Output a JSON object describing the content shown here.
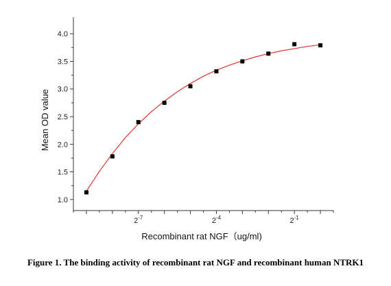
{
  "chart_data": {
    "type": "scatter",
    "title": "",
    "xlabel": "Recombinant rat NGF（ug/ml)",
    "ylabel": "Mean OD value",
    "x_scale": "log2",
    "xlim_exp2": [
      -9.5,
      0.5
    ],
    "ylim": [
      0.8,
      4.3
    ],
    "y_ticks": [
      "1.0",
      "1.5",
      "2.0",
      "2.5",
      "3.0",
      "3.5",
      "4.0"
    ],
    "x_ticks_labeled": [
      {
        "base": "2",
        "exp": "-7"
      },
      {
        "base": "2",
        "exp": "-4"
      },
      {
        "base": "2",
        "exp": "-1"
      }
    ],
    "series": [
      {
        "marker": "square",
        "color": "#000000",
        "x_exp2": [
          -9,
          -8,
          -7,
          -6,
          -5,
          -4,
          -3,
          -2,
          -1,
          0
        ],
        "y": [
          1.13,
          1.78,
          2.4,
          2.75,
          3.05,
          3.32,
          3.5,
          3.64,
          3.81,
          3.79
        ]
      }
    ],
    "fit_curve": {
      "color": "#e03030",
      "x_exp2": [
        -9,
        -8.5,
        -8,
        -7.5,
        -7,
        -6.5,
        -6,
        -5.5,
        -5,
        -4.5,
        -4,
        -3.5,
        -3,
        -2.5,
        -2,
        -1.5,
        -1,
        -0.5,
        0
      ],
      "y": [
        1.15,
        1.51,
        1.83,
        2.12,
        2.37,
        2.59,
        2.78,
        2.95,
        3.1,
        3.23,
        3.34,
        3.43,
        3.51,
        3.58,
        3.64,
        3.69,
        3.73,
        3.77,
        3.8
      ]
    },
    "grid": false,
    "legend": "none"
  },
  "caption": "Figure 1. The binding activity of recombinant rat NGF and recombinant human NTRK1"
}
